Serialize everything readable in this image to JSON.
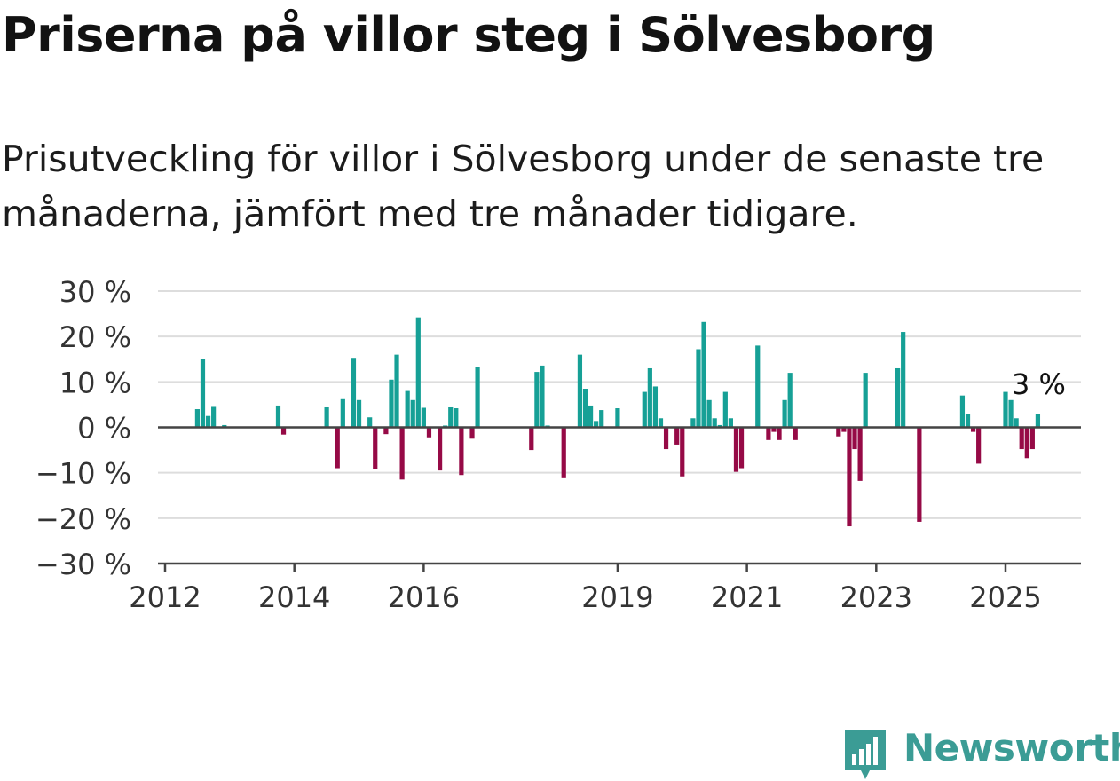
{
  "title": "Priserna på villor steg i Sölvesborg",
  "subtitle": "Prisutveckling för villor i Sölvesborg under de senaste tre månaderna, jämfört med tre månader tidigare.",
  "brand": {
    "name": "Newsworthy",
    "color": "#3b9c95",
    "icon": "newsworthy-logo-icon"
  },
  "colors": {
    "positive": "#16a096",
    "negative": "#960a46",
    "grid": "#dddddd",
    "axis": "#444444"
  },
  "chart_data": {
    "type": "bar",
    "title": "Priserna på villor steg i Sölvesborg",
    "xlabel": "",
    "ylabel": "",
    "ylim": [
      -30,
      30
    ],
    "yticks": [
      30,
      20,
      10,
      0,
      -10,
      -20,
      -30
    ],
    "ytick_labels": [
      "30 %",
      "20 %",
      "10 %",
      "0 %",
      "−10 %",
      "−20 %",
      "−30 %"
    ],
    "xlim": [
      "2012-01",
      "2026-01"
    ],
    "xticks": [
      "2012-01",
      "2014-01",
      "2016-01",
      "2019-01",
      "2021-01",
      "2023-01",
      "2025-01"
    ],
    "xtick_labels": [
      "2012",
      "2014",
      "2016",
      "2019",
      "2021",
      "2023",
      "2025"
    ],
    "grid": true,
    "legend": "none",
    "annotation": {
      "x": "2025-07",
      "text": "3 %"
    },
    "points": [
      {
        "x": "2012-07",
        "y": 4
      },
      {
        "x": "2012-08",
        "y": 15
      },
      {
        "x": "2012-09",
        "y": 2.5
      },
      {
        "x": "2012-10",
        "y": 4.5
      },
      {
        "x": "2012-12",
        "y": 0.5
      },
      {
        "x": "2013-10",
        "y": 4.8
      },
      {
        "x": "2013-11",
        "y": -1.6
      },
      {
        "x": "2014-07",
        "y": 4.4
      },
      {
        "x": "2014-09",
        "y": -9
      },
      {
        "x": "2014-10",
        "y": 6.2
      },
      {
        "x": "2014-12",
        "y": 15.3
      },
      {
        "x": "2015-01",
        "y": 6
      },
      {
        "x": "2015-03",
        "y": 2.2
      },
      {
        "x": "2015-04",
        "y": -9.2
      },
      {
        "x": "2015-06",
        "y": -1.5
      },
      {
        "x": "2015-07",
        "y": 10.5
      },
      {
        "x": "2015-08",
        "y": 16
      },
      {
        "x": "2015-09",
        "y": -11.5
      },
      {
        "x": "2015-10",
        "y": 8
      },
      {
        "x": "2015-11",
        "y": 6
      },
      {
        "x": "2015-12",
        "y": 24.2
      },
      {
        "x": "2016-01",
        "y": 4.3
      },
      {
        "x": "2016-02",
        "y": -2.2
      },
      {
        "x": "2016-04",
        "y": -9.5
      },
      {
        "x": "2016-05",
        "y": 0.4
      },
      {
        "x": "2016-06",
        "y": 4.4
      },
      {
        "x": "2016-07",
        "y": 4.2
      },
      {
        "x": "2016-08",
        "y": -10.5
      },
      {
        "x": "2016-10",
        "y": -2.5
      },
      {
        "x": "2016-11",
        "y": 13.3
      },
      {
        "x": "2017-09",
        "y": -5
      },
      {
        "x": "2017-10",
        "y": 12.2
      },
      {
        "x": "2017-11",
        "y": 13.6
      },
      {
        "x": "2017-12",
        "y": 0.4
      },
      {
        "x": "2018-03",
        "y": -11.2
      },
      {
        "x": "2018-06",
        "y": 16
      },
      {
        "x": "2018-07",
        "y": 8.5
      },
      {
        "x": "2018-08",
        "y": 4.8
      },
      {
        "x": "2018-09",
        "y": 1.4
      },
      {
        "x": "2018-10",
        "y": 3.8
      },
      {
        "x": "2019-01",
        "y": 4.2
      },
      {
        "x": "2019-06",
        "y": 7.8
      },
      {
        "x": "2019-07",
        "y": 13
      },
      {
        "x": "2019-08",
        "y": 9
      },
      {
        "x": "2019-09",
        "y": 2
      },
      {
        "x": "2019-10",
        "y": -4.8
      },
      {
        "x": "2019-12",
        "y": -3.8
      },
      {
        "x": "2020-01",
        "y": -10.8
      },
      {
        "x": "2020-03",
        "y": 2
      },
      {
        "x": "2020-04",
        "y": 17.2
      },
      {
        "x": "2020-05",
        "y": 23.2
      },
      {
        "x": "2020-06",
        "y": 6
      },
      {
        "x": "2020-07",
        "y": 2
      },
      {
        "x": "2020-08",
        "y": 0.5
      },
      {
        "x": "2020-09",
        "y": 7.8
      },
      {
        "x": "2020-10",
        "y": 2
      },
      {
        "x": "2020-11",
        "y": -9.8
      },
      {
        "x": "2020-12",
        "y": -9
      },
      {
        "x": "2021-03",
        "y": 18
      },
      {
        "x": "2021-05",
        "y": -2.8
      },
      {
        "x": "2021-06",
        "y": -1
      },
      {
        "x": "2021-07",
        "y": -2.8
      },
      {
        "x": "2021-08",
        "y": 6
      },
      {
        "x": "2021-09",
        "y": 12
      },
      {
        "x": "2021-10",
        "y": -2.8
      },
      {
        "x": "2022-06",
        "y": -2
      },
      {
        "x": "2022-07",
        "y": -1
      },
      {
        "x": "2022-08",
        "y": -21.8
      },
      {
        "x": "2022-09",
        "y": -4.8
      },
      {
        "x": "2022-10",
        "y": -11.8
      },
      {
        "x": "2022-11",
        "y": 12
      },
      {
        "x": "2023-05",
        "y": 13
      },
      {
        "x": "2023-06",
        "y": 21
      },
      {
        "x": "2023-09",
        "y": -20.8
      },
      {
        "x": "2024-05",
        "y": 7
      },
      {
        "x": "2024-06",
        "y": 3
      },
      {
        "x": "2024-07",
        "y": -1
      },
      {
        "x": "2024-08",
        "y": -8
      },
      {
        "x": "2025-01",
        "y": 7.8
      },
      {
        "x": "2025-02",
        "y": 6
      },
      {
        "x": "2025-03",
        "y": 2
      },
      {
        "x": "2025-04",
        "y": -4.8
      },
      {
        "x": "2025-05",
        "y": -6.8
      },
      {
        "x": "2025-06",
        "y": -4.8
      },
      {
        "x": "2025-07",
        "y": 3
      }
    ]
  }
}
